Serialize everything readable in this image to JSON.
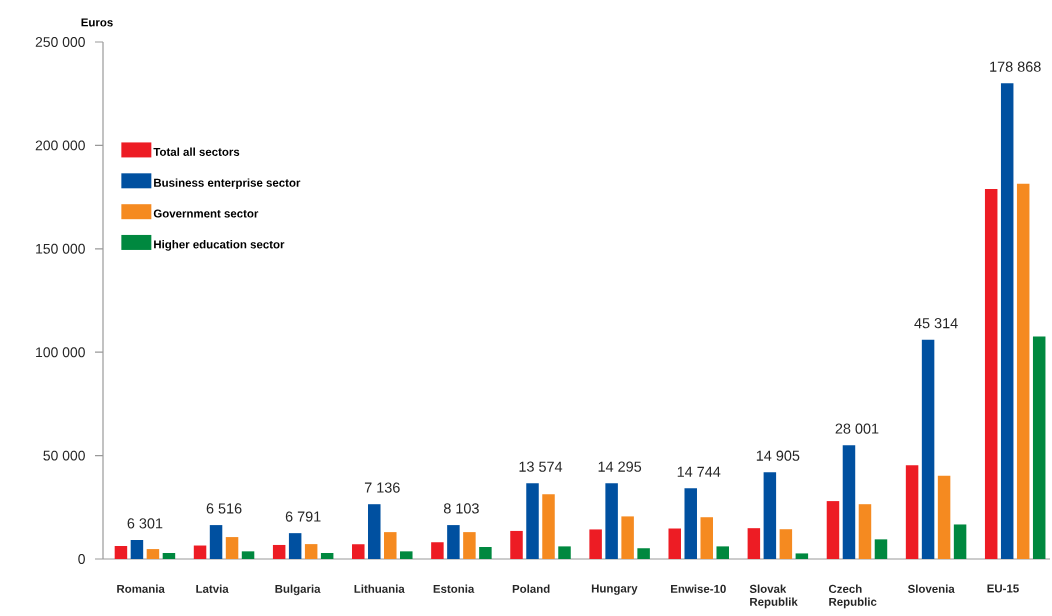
{
  "chart_data": {
    "type": "bar",
    "ylabel": "Euros",
    "categories": [
      "Romania",
      "Latvia",
      "Bulgaria",
      "Lithuania",
      "Estonia",
      "Poland",
      "Hungary",
      "Enwise-10",
      "Slovak Republik",
      "Czech Republic",
      "Slovenia",
      "EU-15"
    ],
    "series": [
      {
        "name": "Total all sectors",
        "color": "#ed1c24",
        "values": [
          6301,
          6516,
          6791,
          7136,
          8103,
          13574,
          14295,
          14744,
          14905,
          28001,
          45314,
          178868
        ]
      },
      {
        "name": "Business enterprise sector",
        "color": "#0050a0",
        "values": [
          9200,
          16400,
          12500,
          26500,
          16400,
          36600,
          36600,
          34200,
          41900,
          55000,
          106000,
          230000
        ]
      },
      {
        "name": "Government sector",
        "color": "#f58a20",
        "values": [
          4800,
          10600,
          7200,
          13000,
          13000,
          31300,
          20600,
          20200,
          14400,
          26500,
          40200,
          181500
        ]
      },
      {
        "name": "Higher education sector",
        "color": "#00883f",
        "values": [
          2900,
          3700,
          2900,
          3700,
          5800,
          6100,
          5200,
          6100,
          2700,
          9500,
          16700,
          107600
        ]
      }
    ],
    "ylim": [
      0,
      250000
    ],
    "yticks": [
      {
        "value": 0,
        "label": "0"
      },
      {
        "value": 50000,
        "label": "50 000"
      },
      {
        "value": 100000,
        "label": "100 000"
      },
      {
        "value": 150000,
        "label": "150 000"
      },
      {
        "value": 200000,
        "label": "200 000"
      },
      {
        "value": 250000,
        "label": "250 000"
      }
    ],
    "grid": false,
    "legend": "top left",
    "annotations": [
      "6 301",
      "6 516",
      "6 791",
      "7 136",
      "8 103",
      "13 574",
      "14 295",
      "14 744",
      "14 905",
      "28 001",
      "45 314",
      "178 868"
    ]
  }
}
